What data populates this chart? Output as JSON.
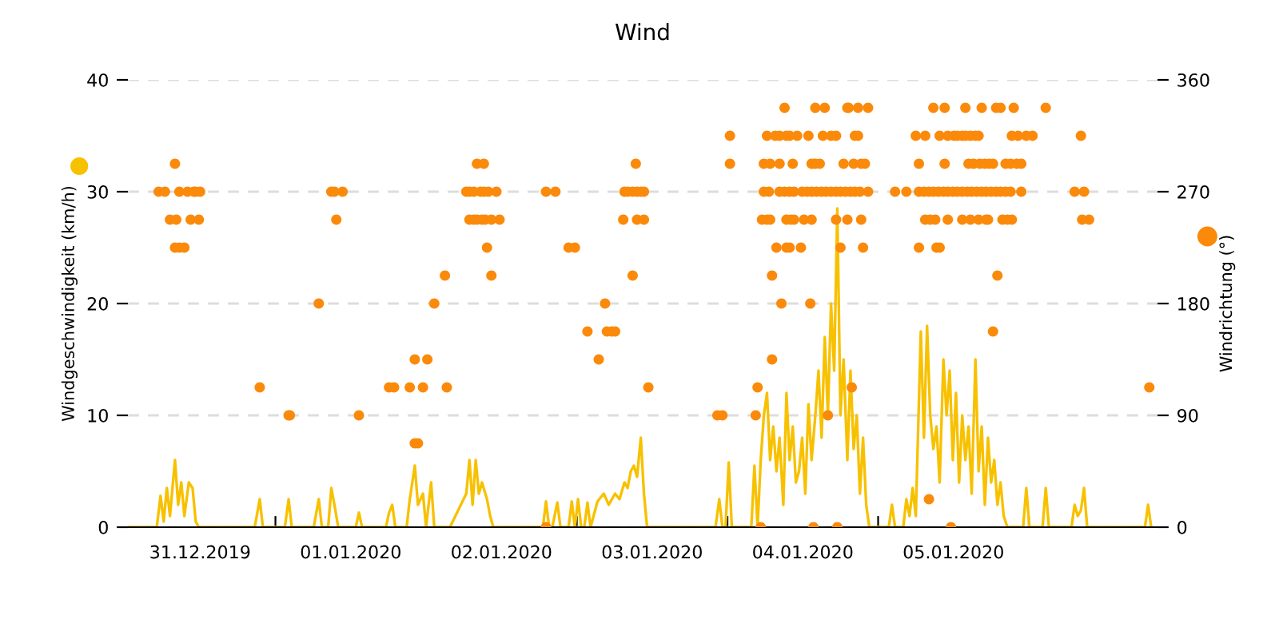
{
  "chart_data": {
    "type": "line",
    "title": "Wind",
    "ylabel": "Windgeschwindigkeit (km/h)",
    "y2label": "Windrichtung (°)",
    "xlim": [
      "2019-12-31T00:30",
      "2020-01-06T20:30"
    ],
    "ylim": [
      0,
      40
    ],
    "yticks": [
      0,
      10,
      20,
      30,
      40
    ],
    "y2lim": [
      0,
      360
    ],
    "y2ticks": [
      0,
      90,
      180,
      270,
      360
    ],
    "xticks": [
      {
        "value": "2019-12-31T12:00",
        "label": "31.12.2019"
      },
      {
        "value": "2020-01-01T00:00",
        "label": null
      },
      {
        "value": "2020-01-01T12:00",
        "label": "01.01.2020"
      },
      {
        "value": "2020-01-02T00:00",
        "label": null
      },
      {
        "value": "2020-01-02T12:00",
        "label": "02.01.2020"
      },
      {
        "value": "2020-01-03T00:00",
        "label": null
      },
      {
        "value": "2020-01-03T12:00",
        "label": "03.01.2020"
      },
      {
        "value": "2020-01-04T00:00",
        "label": null
      },
      {
        "value": "2020-01-04T12:00",
        "label": "04.01.2020"
      },
      {
        "value": "2020-01-05T00:00",
        "label": null
      },
      {
        "value": "2020-01-05T12:00",
        "label": "05.01.2020"
      },
      {
        "value": "2020-01-06T00:00",
        "label": null
      }
    ],
    "grid": "y",
    "series": [
      {
        "color": "#f7c100",
        "marker": "none",
        "line_style": "solid",
        "x": [
          "2019-12-31T00:36",
          "2019-12-31T05:06",
          "2019-12-31T05:42",
          "2019-12-31T06:12",
          "2019-12-31T06:42",
          "2019-12-31T07:12",
          "2019-12-31T08:00",
          "2019-12-31T08:30",
          "2019-12-31T09:00",
          "2019-12-31T09:30",
          "2019-12-31T10:12",
          "2019-12-31T10:48",
          "2019-12-31T11:18",
          "2019-12-31T11:48",
          "2019-12-31T20:42",
          "2019-12-31T21:30",
          "2019-12-31T22:00",
          "2020-01-01T01:30",
          "2020-01-01T02:06",
          "2020-01-01T02:36",
          "2020-01-01T06:06",
          "2020-01-01T06:54",
          "2020-01-01T07:24",
          "2020-01-01T08:24",
          "2020-01-01T08:54",
          "2020-01-01T09:24",
          "2020-01-01T10:00",
          "2020-01-01T12:48",
          "2020-01-01T13:18",
          "2020-01-01T13:48",
          "2020-01-01T17:36",
          "2020-01-01T18:06",
          "2020-01-01T18:36",
          "2020-01-01T19:06",
          "2020-01-01T20:54",
          "2020-01-01T21:24",
          "2020-01-01T22:12",
          "2020-01-01T22:42",
          "2020-01-01T23:30",
          "2020-01-02T00:00",
          "2020-01-02T00:48",
          "2020-01-02T01:18",
          "2020-01-02T03:48",
          "2020-01-02T06:24",
          "2020-01-02T06:54",
          "2020-01-02T07:24",
          "2020-01-02T07:54",
          "2020-01-02T08:24",
          "2020-01-02T08:54",
          "2020-01-02T09:42",
          "2020-01-02T10:12",
          "2020-01-02T10:42",
          "2020-01-02T18:36",
          "2020-01-02T19:06",
          "2020-01-02T19:36",
          "2020-01-02T20:06",
          "2020-01-02T20:54",
          "2020-01-02T21:24",
          "2020-01-02T22:42",
          "2020-01-02T23:12",
          "2020-01-02T23:42",
          "2020-01-03T00:12",
          "2020-01-03T00:42",
          "2020-01-03T01:12",
          "2020-01-03T01:42",
          "2020-01-03T02:12",
          "2020-01-03T03:18",
          "2020-01-03T04:18",
          "2020-01-03T05:06",
          "2020-01-03T06:06",
          "2020-01-03T06:48",
          "2020-01-03T07:36",
          "2020-01-03T08:06",
          "2020-01-03T08:36",
          "2020-01-03T09:06",
          "2020-01-03T09:36",
          "2020-01-03T10:12",
          "2020-01-03T10:42",
          "2020-01-03T11:12",
          "2020-01-03T22:06",
          "2020-01-03T22:42",
          "2020-01-03T23:12",
          "2020-01-03T23:42",
          "2020-01-04T00:12",
          "2020-01-04T00:42",
          "2020-01-04T03:48",
          "2020-01-04T04:18",
          "2020-01-04T04:48",
          "2020-01-04T05:18",
          "2020-01-04T05:48",
          "2020-01-04T06:18",
          "2020-01-04T06:48",
          "2020-01-04T07:18",
          "2020-01-04T07:48",
          "2020-01-04T08:18",
          "2020-01-04T08:54",
          "2020-01-04T09:24",
          "2020-01-04T09:54",
          "2020-01-04T10:24",
          "2020-01-04T10:54",
          "2020-01-04T11:24",
          "2020-01-04T11:54",
          "2020-01-04T12:24",
          "2020-01-04T12:54",
          "2020-01-04T13:24",
          "2020-01-04T14:00",
          "2020-01-04T14:30",
          "2020-01-04T15:00",
          "2020-01-04T15:30",
          "2020-01-04T16:00",
          "2020-01-04T16:30",
          "2020-01-04T17:00",
          "2020-01-04T17:30",
          "2020-01-04T18:00",
          "2020-01-04T18:30",
          "2020-01-04T19:06",
          "2020-01-04T19:36",
          "2020-01-04T20:06",
          "2020-01-04T20:36",
          "2020-01-04T21:06",
          "2020-01-04T21:36",
          "2020-01-04T22:06",
          "2020-01-04T22:36",
          "2020-01-05T01:42",
          "2020-01-05T02:12",
          "2020-01-05T02:42",
          "2020-01-05T04:00",
          "2020-01-05T04:30",
          "2020-01-05T05:00",
          "2020-01-05T05:30",
          "2020-01-05T06:00",
          "2020-01-05T06:48",
          "2020-01-05T07:18",
          "2020-01-05T07:48",
          "2020-01-05T08:18",
          "2020-01-05T08:48",
          "2020-01-05T09:18",
          "2020-01-05T09:48",
          "2020-01-05T10:24",
          "2020-01-05T10:54",
          "2020-01-05T11:24",
          "2020-01-05T11:54",
          "2020-01-05T12:24",
          "2020-01-05T12:54",
          "2020-01-05T13:24",
          "2020-01-05T13:54",
          "2020-01-05T14:24",
          "2020-01-05T14:54",
          "2020-01-05T15:30",
          "2020-01-05T16:00",
          "2020-01-05T16:30",
          "2020-01-05T17:00",
          "2020-01-05T17:30",
          "2020-01-05T18:00",
          "2020-01-05T18:30",
          "2020-01-05T19:00",
          "2020-01-05T19:30",
          "2020-01-05T20:00",
          "2020-01-05T20:36",
          "2020-01-05T23:06",
          "2020-01-05T23:36",
          "2020-01-06T00:06",
          "2020-01-06T02:12",
          "2020-01-06T02:42",
          "2020-01-06T03:12",
          "2020-01-06T06:48",
          "2020-01-06T07:18",
          "2020-01-06T07:48",
          "2020-01-06T08:18",
          "2020-01-06T08:48",
          "2020-01-06T09:18",
          "2020-01-06T18:30",
          "2020-01-06T19:00",
          "2020-01-06T19:30"
        ],
        "values": [
          0,
          0,
          2.8,
          0.5,
          3.5,
          1,
          6,
          2,
          4,
          1,
          4,
          3.5,
          0.5,
          0,
          0,
          2.5,
          0,
          0,
          2.5,
          0,
          0,
          2.5,
          0,
          0,
          3.5,
          2,
          0,
          0,
          1.3,
          0,
          0,
          1.3,
          2,
          0,
          0,
          2.5,
          5.5,
          2,
          3,
          0,
          4,
          0,
          0,
          3,
          6,
          2,
          6,
          3,
          4,
          2.5,
          1,
          0,
          0,
          2.3,
          0,
          0,
          2.2,
          0,
          0,
          2.3,
          0,
          2.5,
          0,
          0,
          2.2,
          0,
          2.3,
          3,
          2,
          3,
          2.5,
          4,
          3.5,
          5,
          5.5,
          4.5,
          8,
          3,
          0,
          0,
          2.5,
          0,
          0,
          5.8,
          0,
          0,
          5.5,
          0,
          6,
          10,
          12,
          6,
          9,
          5,
          8,
          2,
          12,
          6,
          9,
          4,
          5,
          8,
          3,
          11,
          6,
          10,
          14,
          8,
          17,
          10,
          20,
          14,
          28.5,
          10,
          15,
          6,
          14,
          7,
          10,
          3,
          8,
          2,
          0,
          0,
          2,
          0,
          0,
          2.5,
          1,
          3.5,
          1,
          17.5,
          8,
          18,
          10,
          7,
          9,
          4,
          15,
          10,
          14,
          6,
          12,
          4,
          10,
          6,
          9,
          3,
          15,
          5,
          9,
          2,
          8,
          4,
          6,
          2,
          4,
          1,
          0,
          0,
          3.5,
          0,
          0,
          3.5,
          0,
          0,
          2,
          1,
          1.5,
          3.5,
          0,
          0,
          2,
          0
        ]
      },
      {
        "type": "scatter",
        "axis": "y2",
        "color": "#fb8a0a",
        "marker": "circle",
        "x": [
          "2019-12-31T05:24",
          "2019-12-31T06:24",
          "2019-12-31T07:12",
          "2019-12-31T08:00",
          "2019-12-31T08:00",
          "2019-12-31T08:12",
          "2019-12-31T08:42",
          "2019-12-31T08:42",
          "2019-12-31T09:30",
          "2019-12-31T10:00",
          "2019-12-31T10:30",
          "2019-12-31T11:00",
          "2019-12-31T11:18",
          "2019-12-31T11:48",
          "2019-12-31T12:00",
          "2019-12-31T21:30",
          "2020-01-01T02:06",
          "2020-01-01T02:18",
          "2020-01-01T06:54",
          "2020-01-01T08:54",
          "2020-01-01T09:24",
          "2020-01-01T09:42",
          "2020-01-01T10:42",
          "2020-01-01T13:18",
          "2020-01-01T18:06",
          "2020-01-01T18:54",
          "2020-01-01T21:24",
          "2020-01-01T22:12",
          "2020-01-01T22:12",
          "2020-01-01T22:42",
          "2020-01-01T23:30",
          "2020-01-02T00:12",
          "2020-01-02T01:18",
          "2020-01-02T03:00",
          "2020-01-02T03:18",
          "2020-01-02T06:24",
          "2020-01-02T06:54",
          "2020-01-02T07:36",
          "2020-01-02T08:42",
          "2020-01-02T09:12",
          "2020-01-02T09:54",
          "2020-01-02T11:12",
          "2020-01-02T06:54",
          "2020-01-02T07:36",
          "2020-01-02T08:06",
          "2020-01-02T08:54",
          "2020-01-02T09:24",
          "2020-01-02T10:24",
          "2020-01-02T11:42",
          "2020-01-02T08:06",
          "2020-01-02T09:12",
          "2020-01-02T09:42",
          "2020-01-02T10:24",
          "2020-01-02T19:06",
          "2020-01-02T19:06",
          "2020-01-02T20:36",
          "2020-01-02T22:42",
          "2020-01-02T23:42",
          "2020-01-03T01:42",
          "2020-01-03T03:30",
          "2020-01-03T04:30",
          "2020-01-03T04:48",
          "2020-01-03T05:36",
          "2020-01-03T06:06",
          "2020-01-03T07:24",
          "2020-01-03T07:36",
          "2020-01-03T08:06",
          "2020-01-03T08:54",
          "2020-01-03T09:36",
          "2020-01-03T10:12",
          "2020-01-03T10:42",
          "2020-01-03T08:54",
          "2020-01-03T09:24",
          "2020-01-03T09:36",
          "2020-01-03T10:42",
          "2020-01-03T11:24",
          "2020-01-03T22:24",
          "2020-01-03T23:12",
          "2020-01-04T00:24",
          "2020-01-04T00:24",
          "2020-01-04T04:30",
          "2020-01-04T04:48",
          "2020-01-04T05:18",
          "2020-01-04T07:06",
          "2020-01-04T07:06",
          "2020-01-04T08:36",
          "2020-01-04T13:12",
          "2020-01-04T13:42",
          "2020-01-04T16:00",
          "2020-01-04T17:30",
          "2020-01-04T18:00",
          "2020-01-04T19:48",
          "2020-01-04T21:36",
          "2020-01-04T09:06",
          "2020-01-04T14:00",
          "2020-01-04T15:30",
          "2020-01-04T19:06",
          "2020-01-04T19:18",
          "2020-01-04T20:48",
          "2020-01-04T22:24",
          "2020-01-04T06:18",
          "2020-01-04T07:36",
          "2020-01-04T08:18",
          "2020-01-04T09:24",
          "2020-01-04T09:54",
          "2020-01-04T11:06",
          "2020-01-04T12:54",
          "2020-01-04T15:12",
          "2020-01-04T16:30",
          "2020-01-04T17:18",
          "2020-01-04T20:18",
          "2020-01-04T20:48",
          "2020-01-04T05:48",
          "2020-01-04T06:48",
          "2020-01-04T08:18",
          "2020-01-04T10:24",
          "2020-01-04T13:24",
          "2020-01-04T14:00",
          "2020-01-04T14:42",
          "2020-01-04T18:30",
          "2020-01-04T20:06",
          "2020-01-04T21:18",
          "2020-01-04T21:54",
          "2020-01-04T05:48",
          "2020-01-04T06:36",
          "2020-01-04T08:18",
          "2020-01-04T09:06",
          "2020-01-04T09:54",
          "2020-01-04T10:36",
          "2020-01-04T11:54",
          "2020-01-04T12:42",
          "2020-01-04T13:24",
          "2020-01-04T14:12",
          "2020-01-04T15:00",
          "2020-01-04T15:42",
          "2020-01-04T16:30",
          "2020-01-04T17:18",
          "2020-01-04T18:00",
          "2020-01-04T18:48",
          "2020-01-04T19:36",
          "2020-01-04T20:18",
          "2020-01-04T21:06",
          "2020-01-04T22:24",
          "2020-01-04T05:30",
          "2020-01-04T06:18",
          "2020-01-04T06:48",
          "2020-01-04T09:24",
          "2020-01-04T10:06",
          "2020-01-04T10:36",
          "2020-01-04T12:12",
          "2020-01-04T13:24",
          "2020-01-04T17:18",
          "2020-01-04T19:06",
          "2020-01-04T21:18",
          "2020-01-04T07:48",
          "2020-01-04T09:24",
          "2020-01-04T09:54",
          "2020-01-04T11:42",
          "2020-01-05T02:42",
          "2020-01-05T04:30",
          "2020-01-05T08:48",
          "2020-01-05T10:36",
          "2020-01-05T13:54",
          "2020-01-05T16:30",
          "2020-01-05T18:48",
          "2020-01-05T19:30",
          "2020-01-05T21:36",
          "2020-01-06T02:42",
          "2020-01-05T06:00",
          "2020-01-05T07:30",
          "2020-01-05T09:48",
          "2020-01-05T11:06",
          "2020-01-05T12:06",
          "2020-01-05T12:36",
          "2020-01-05T13:24",
          "2020-01-05T13:54",
          "2020-01-05T14:42",
          "2020-01-05T15:30",
          "2020-01-05T16:00",
          "2020-01-05T21:18",
          "2020-01-05T22:18",
          "2020-01-05T23:36",
          "2020-01-06T00:36",
          "2020-01-06T08:18",
          "2020-01-05T06:30",
          "2020-01-05T10:36",
          "2020-01-05T14:24",
          "2020-01-05T15:12",
          "2020-01-05T16:12",
          "2020-01-05T17:00",
          "2020-01-05T17:42",
          "2020-01-05T18:18",
          "2020-01-05T20:18",
          "2020-01-05T21:06",
          "2020-01-05T22:06",
          "2020-01-05T22:48",
          "2020-01-05T06:30",
          "2020-01-05T07:18",
          "2020-01-05T08:06",
          "2020-01-05T08:48",
          "2020-01-05T09:36",
          "2020-01-05T10:24",
          "2020-01-05T11:06",
          "2020-01-05T11:54",
          "2020-01-05T12:36",
          "2020-01-05T13:24",
          "2020-01-05T14:12",
          "2020-01-05T14:54",
          "2020-01-05T15:42",
          "2020-01-05T16:30",
          "2020-01-05T17:12",
          "2020-01-05T18:00",
          "2020-01-05T18:48",
          "2020-01-05T19:30",
          "2020-01-05T20:18",
          "2020-01-05T21:06",
          "2020-01-05T22:48",
          "2020-01-06T07:18",
          "2020-01-06T08:48",
          "2020-01-05T07:30",
          "2020-01-05T08:18",
          "2020-01-05T09:06",
          "2020-01-05T11:06",
          "2020-01-05T13:24",
          "2020-01-05T14:42",
          "2020-01-05T16:00",
          "2020-01-05T17:12",
          "2020-01-05T17:30",
          "2020-01-05T19:48",
          "2020-01-05T20:36",
          "2020-01-05T21:18",
          "2020-01-06T08:30",
          "2020-01-06T09:36",
          "2020-01-05T06:30",
          "2020-01-05T09:18",
          "2020-01-05T09:48",
          "2020-01-05T19:00",
          "2020-01-05T18:18",
          "2020-01-05T08:06",
          "2020-01-05T11:36",
          "2020-01-06T19:12"
        ],
        "values": [
          270,
          270,
          247.5,
          292.5,
          225,
          247.5,
          225,
          270,
          225,
          270,
          247.5,
          270,
          270,
          247.5,
          270,
          112.5,
          90,
          90,
          180,
          270,
          270,
          247.5,
          270,
          90,
          112.5,
          112.5,
          112.5,
          135,
          67.5,
          67.5,
          112.5,
          135,
          180,
          202.5,
          112.5,
          270,
          270,
          270,
          270,
          270,
          270,
          270,
          247.5,
          247.5,
          247.5,
          247.5,
          247.5,
          247.5,
          247.5,
          292.5,
          292.5,
          225,
          202.5,
          0,
          270,
          270,
          225,
          225,
          157.5,
          135,
          180,
          157.5,
          157.5,
          157.5,
          247.5,
          270,
          270,
          270,
          270,
          270,
          270,
          202.5,
          292.5,
          247.5,
          247.5,
          112.5,
          90,
          90,
          315,
          292.5,
          90,
          112.5,
          0,
          135,
          202.5,
          180,
          180,
          0,
          90,
          0,
          225,
          112.5,
          225,
          337.5,
          337.5,
          337.5,
          337.5,
          337.5,
          337.5,
          337.5,
          315,
          315,
          315,
          315,
          315,
          315,
          315,
          315,
          315,
          315,
          315,
          315,
          292.5,
          292.5,
          292.5,
          292.5,
          292.5,
          292.5,
          292.5,
          292.5,
          292.5,
          292.5,
          292.5,
          270,
          270,
          270,
          270,
          270,
          270,
          270,
          270,
          270,
          270,
          270,
          270,
          270,
          270,
          270,
          270,
          270,
          270,
          270,
          270,
          247.5,
          247.5,
          247.5,
          247.5,
          247.5,
          247.5,
          247.5,
          247.5,
          247.5,
          247.5,
          247.5,
          225,
          225,
          225,
          225,
          270,
          270,
          337.5,
          337.5,
          337.5,
          337.5,
          337.5,
          337.5,
          337.5,
          337.5,
          315,
          315,
          315,
          315,
          315,
          315,
          315,
          315,
          315,
          315,
          315,
          315,
          315,
          315,
          315,
          315,
          292.5,
          292.5,
          292.5,
          292.5,
          292.5,
          292.5,
          292.5,
          292.5,
          292.5,
          292.5,
          292.5,
          292.5,
          270,
          270,
          270,
          270,
          270,
          270,
          270,
          270,
          270,
          270,
          270,
          270,
          270,
          270,
          270,
          270,
          270,
          270,
          270,
          270,
          270,
          270,
          270,
          247.5,
          247.5,
          247.5,
          247.5,
          247.5,
          247.5,
          247.5,
          247.5,
          247.5,
          247.5,
          247.5,
          247.5,
          247.5,
          247.5,
          225,
          225,
          225,
          202.5,
          157.5,
          22.5,
          0,
          112.5
        ]
      }
    ]
  }
}
